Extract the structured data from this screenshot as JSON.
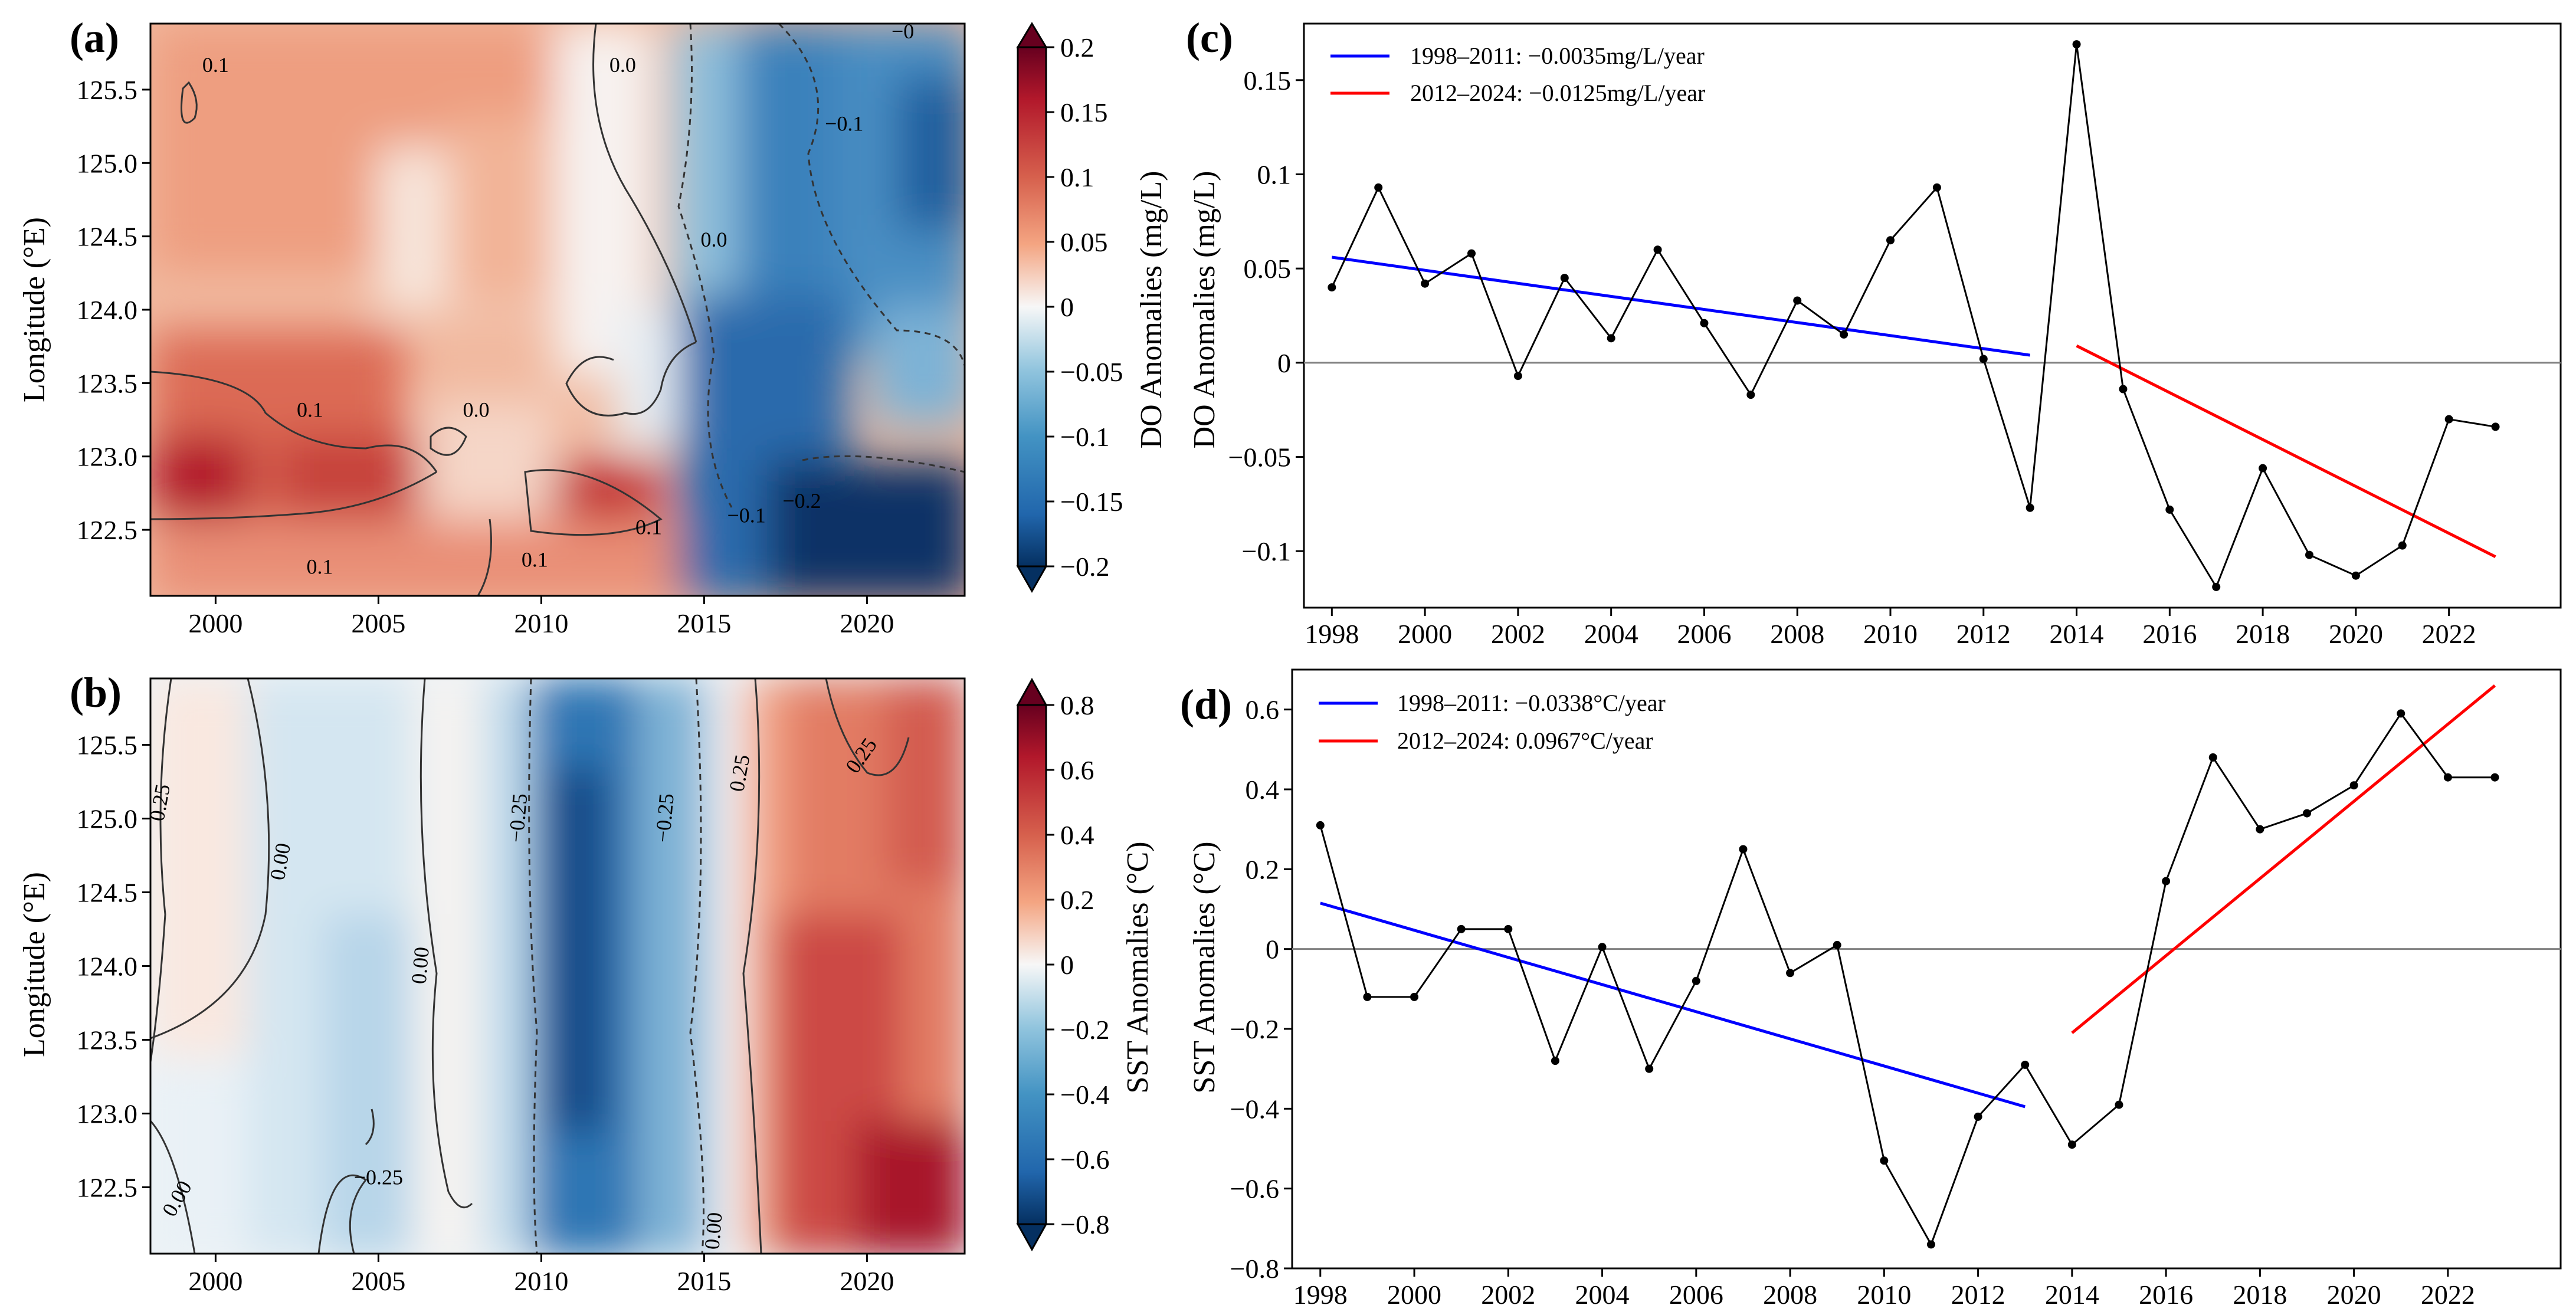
{
  "chart_data": [
    {
      "panel": "a",
      "panel_label": "(a)",
      "type": "heatmap",
      "xlabel": "",
      "ylabel": "Longitude (°E)",
      "xlim": [
        1998,
        2023
      ],
      "ylim": [
        122.05,
        125.95
      ],
      "xticks": [
        2000,
        2005,
        2010,
        2015,
        2020
      ],
      "yticks": [
        "122.5",
        "123.0",
        "123.5",
        "124.0",
        "124.5",
        "125.0",
        "125.5"
      ],
      "colorbar": {
        "label": "DO Anomalies (mg/L)",
        "vmin": -0.2,
        "vmax": 0.2,
        "ticks": [
          "-0.2",
          "-0.15",
          "-0.1",
          "-0.05",
          "0",
          "0.05",
          "0.1",
          "0.15",
          "0.2"
        ],
        "ticks_display": [
          "−0.2",
          "−0.15",
          "−0.1",
          "−0.05",
          "0",
          "0.05",
          "0.1",
          "0.15",
          "0.2"
        ]
      },
      "contour_labels": [
        {
          "text": "0.1",
          "x": 2000.0,
          "y": 125.62
        },
        {
          "text": "0.0",
          "x": 2012.5,
          "y": 125.62
        },
        {
          "text": "−0",
          "x": 2021.1,
          "y": 125.85
        },
        {
          "text": "−0.1",
          "x": 2019.3,
          "y": 125.22
        },
        {
          "text": "0.0",
          "x": 2015.3,
          "y": 124.43
        },
        {
          "text": "0.1",
          "x": 2002.9,
          "y": 123.27
        },
        {
          "text": "0.0",
          "x": 2008.0,
          "y": 123.27
        },
        {
          "text": "0.1",
          "x": 2013.3,
          "y": 122.47
        },
        {
          "text": "0.1",
          "x": 2003.2,
          "y": 122.2
        },
        {
          "text": "0.1",
          "x": 2009.8,
          "y": 122.25
        },
        {
          "text": "−0.1",
          "x": 2016.3,
          "y": 122.55
        },
        {
          "text": "−0.2",
          "x": 2018.0,
          "y": 122.65
        }
      ]
    },
    {
      "panel": "b",
      "panel_label": "(b)",
      "type": "heatmap",
      "xlabel": "",
      "ylabel": "Longitude (°E)",
      "xlim": [
        1998,
        2023
      ],
      "ylim": [
        122.05,
        125.95
      ],
      "xticks": [
        2000,
        2005,
        2010,
        2015,
        2020
      ],
      "yticks": [
        "122.5",
        "123.0",
        "123.5",
        "124.0",
        "124.5",
        "125.0",
        "125.5"
      ],
      "colorbar": {
        "label": "SST Anomalies (°C)",
        "vmin": -0.8,
        "vmax": 0.8,
        "ticks": [
          "-0.8",
          "-0.6",
          "-0.4",
          "-0.2",
          "0",
          "0.2",
          "0.4",
          "0.6",
          "0.8"
        ],
        "ticks_display": [
          "−0.8",
          "−0.6",
          "−0.4",
          "−0.2",
          "0",
          "0.2",
          "0.4",
          "0.6",
          "0.8"
        ]
      },
      "contour_labels": [
        {
          "text": "0.25",
          "x": 1998.5,
          "y": 125.1,
          "rot": -80
        },
        {
          "text": "0.00",
          "x": 2002.2,
          "y": 124.7,
          "rot": -80
        },
        {
          "text": "0.00",
          "x": 2006.5,
          "y": 124.0,
          "rot": -85
        },
        {
          "text": "−0.25",
          "x": 2009.5,
          "y": 125.0,
          "rot": -85
        },
        {
          "text": "−0.25",
          "x": 2014.0,
          "y": 125.0,
          "rot": -85
        },
        {
          "text": "0.25",
          "x": 2016.3,
          "y": 125.3,
          "rot": -80
        },
        {
          "text": "0.25",
          "x": 2020.0,
          "y": 125.4,
          "rot": -55
        },
        {
          "text": "0.00",
          "x": 1999.0,
          "y": 122.4,
          "rot": -60
        },
        {
          "text": "−0.25",
          "x": 2005.0,
          "y": 122.52,
          "rot": 0
        },
        {
          "text": "0.00",
          "x": 2015.5,
          "y": 122.2,
          "rot": -85
        }
      ]
    },
    {
      "panel": "c",
      "panel_label": "(c)",
      "type": "line",
      "ylabel": "DO Anomalies (mg/L)",
      "xlim": [
        1997.4,
        2024.4
      ],
      "ylim": [
        -0.13,
        0.18
      ],
      "xticks": [
        1998,
        2000,
        2002,
        2004,
        2006,
        2008,
        2010,
        2012,
        2014,
        2016,
        2018,
        2020,
        2022
      ],
      "yticks": [
        -0.1,
        -0.05,
        0,
        0.05,
        0.1,
        0.15
      ],
      "ytick_labels": [
        "−0.1",
        "−0.05",
        "0",
        "0.05",
        "0.1",
        "0.15"
      ],
      "x": [
        1998,
        1999,
        2000,
        2001,
        2002,
        2003,
        2004,
        2005,
        2006,
        2007,
        2008,
        2009,
        2010,
        2011,
        2012,
        2013,
        2014,
        2015,
        2016,
        2017,
        2018,
        2019,
        2020,
        2021,
        2022,
        2023
      ],
      "series": [
        {
          "name": "DO anomalies",
          "color": "#000000",
          "values": [
            0.04,
            0.093,
            0.042,
            0.058,
            -0.007,
            0.045,
            0.013,
            0.06,
            0.021,
            -0.017,
            0.033,
            0.015,
            0.065,
            0.093,
            0.002,
            -0.077,
            0.169,
            -0.014,
            -0.078,
            -0.119,
            -0.056,
            -0.102,
            -0.113,
            -0.097,
            -0.03,
            -0.034
          ]
        }
      ],
      "trends": [
        {
          "name": "1998–2011: −0.0035mg/L/year",
          "color": "#0000ff",
          "x": [
            1998,
            2013
          ],
          "y": [
            0.056,
            0.004
          ]
        },
        {
          "name": "2012–2024: −0.0125mg/L/year",
          "color": "#ff0000",
          "x": [
            2014,
            2023
          ],
          "y": [
            0.009,
            -0.103
          ]
        }
      ],
      "zero_line": 0,
      "legend": "top-left"
    },
    {
      "panel": "d",
      "panel_label": "(d)",
      "type": "line",
      "ylabel": "SST Anomalies (°C)",
      "xlim": [
        1997.4,
        2024.4
      ],
      "ylim": [
        -0.8,
        0.7
      ],
      "xticks": [
        1998,
        2000,
        2002,
        2004,
        2006,
        2008,
        2010,
        2012,
        2014,
        2016,
        2018,
        2020,
        2022
      ],
      "yticks": [
        -0.8,
        -0.6,
        -0.4,
        -0.2,
        0,
        0.2,
        0.4,
        0.6
      ],
      "ytick_labels": [
        "−0.8",
        "−0.6",
        "−0.4",
        "−0.2",
        "0",
        "0.2",
        "0.4",
        "0.6"
      ],
      "x": [
        1998,
        1999,
        2000,
        2001,
        2002,
        2003,
        2004,
        2005,
        2006,
        2007,
        2008,
        2009,
        2010,
        2011,
        2012,
        2013,
        2014,
        2015,
        2016,
        2017,
        2018,
        2019,
        2020,
        2021,
        2022,
        2023
      ],
      "series": [
        {
          "name": "SST anomalies",
          "color": "#000000",
          "values": [
            0.31,
            -0.12,
            -0.12,
            0.05,
            0.05,
            -0.28,
            0.005,
            -0.3,
            -0.08,
            0.25,
            -0.06,
            0.01,
            -0.53,
            -0.74,
            -0.42,
            -0.29,
            -0.49,
            -0.39,
            0.17,
            0.48,
            0.3,
            0.34,
            0.41,
            0.59,
            0.43,
            0.43
          ]
        }
      ],
      "trends": [
        {
          "name": "1998–2011: −0.0338°C/year",
          "color": "#0000ff",
          "x": [
            1998,
            2013
          ],
          "y": [
            0.115,
            -0.395
          ]
        },
        {
          "name": "2012–2024: 0.0967°C/year",
          "color": "#ff0000",
          "x": [
            2014,
            2023
          ],
          "y": [
            -0.21,
            0.66
          ]
        }
      ],
      "zero_line": 0,
      "legend": "top-left"
    }
  ]
}
